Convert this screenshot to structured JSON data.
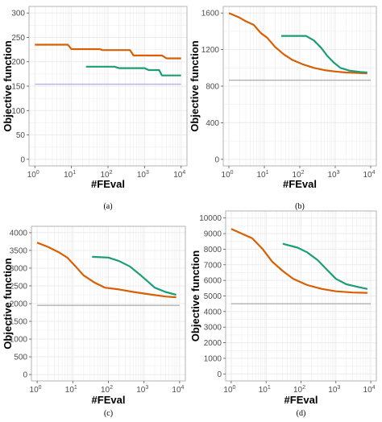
{
  "colors": {
    "series_a": "#D95F02",
    "series_b": "#1B9E77",
    "reference": "#B0B0B0",
    "reference_a": "#B4B1E6",
    "grid": "#EBEBEB",
    "frame": "#B3B3B3"
  },
  "chart_data": [
    {
      "type": "line",
      "panel_label": "(a)",
      "xlabel": "#FEval",
      "ylabel": "Objective function",
      "xscale": "log10",
      "xlim": [
        1,
        10000
      ],
      "ylim": [
        0,
        300
      ],
      "yticks": [
        0,
        50,
        100,
        150,
        200,
        250,
        300
      ],
      "grid": true,
      "legend": "none",
      "series": [
        {
          "values": [
            [
              1,
              235
            ],
            [
              8,
              235
            ],
            [
              10,
              226
            ],
            [
              60,
              226
            ],
            [
              70,
              224
            ],
            [
              400,
              224
            ],
            [
              500,
              213
            ],
            [
              3000,
              213
            ],
            [
              4000,
              207
            ],
            [
              10000,
              207
            ]
          ]
        },
        {
          "values": [
            [
              25,
              190
            ],
            [
              150,
              190
            ],
            [
              200,
              187
            ],
            [
              1000,
              187
            ],
            [
              1300,
              183
            ],
            [
              2500,
              183
            ],
            [
              3000,
              172
            ],
            [
              10000,
              172
            ]
          ]
        },
        {
          "values": [
            [
              1,
              154
            ],
            [
              10000,
              154
            ]
          ]
        }
      ]
    },
    {
      "type": "line",
      "panel_label": "(b)",
      "xlabel": "#FEval",
      "ylabel": "Objective function",
      "xscale": "log10",
      "xlim": [
        1,
        10000
      ],
      "ylim": [
        0,
        1600
      ],
      "yticks": [
        0,
        400,
        800,
        1200,
        1600
      ],
      "grid": true,
      "legend": "none",
      "series": [
        {
          "values": [
            [
              1,
              1600
            ],
            [
              2,
              1550
            ],
            [
              3,
              1510
            ],
            [
              5,
              1470
            ],
            [
              8,
              1380
            ],
            [
              12,
              1330
            ],
            [
              20,
              1230
            ],
            [
              35,
              1150
            ],
            [
              60,
              1090
            ],
            [
              120,
              1040
            ],
            [
              250,
              1000
            ],
            [
              500,
              975
            ],
            [
              1000,
              960
            ],
            [
              2000,
              950
            ],
            [
              4000,
              945
            ],
            [
              8000,
              940
            ]
          ]
        },
        {
          "values": [
            [
              30,
              1350
            ],
            [
              150,
              1350
            ],
            [
              250,
              1300
            ],
            [
              400,
              1220
            ],
            [
              600,
              1130
            ],
            [
              900,
              1060
            ],
            [
              1400,
              1000
            ],
            [
              2500,
              970
            ],
            [
              5000,
              955
            ],
            [
              8000,
              950
            ]
          ]
        },
        {
          "values": [
            [
              1,
              865
            ],
            [
              10000,
              865
            ]
          ]
        }
      ]
    },
    {
      "type": "line",
      "panel_label": "(c)",
      "xlabel": "#FEval",
      "ylabel": "Objective function",
      "xscale": "log10",
      "xlim": [
        1,
        10000
      ],
      "ylim": [
        0,
        4000
      ],
      "yticks": [
        0,
        500,
        1000,
        1500,
        2000,
        2500,
        3000,
        3500,
        4000
      ],
      "grid": true,
      "legend": "none",
      "series": [
        {
          "values": [
            [
              1,
              3720
            ],
            [
              2,
              3600
            ],
            [
              4,
              3450
            ],
            [
              7,
              3300
            ],
            [
              12,
              3050
            ],
            [
              20,
              2800
            ],
            [
              40,
              2600
            ],
            [
              80,
              2450
            ],
            [
              200,
              2400
            ],
            [
              500,
              2330
            ],
            [
              1500,
              2260
            ],
            [
              4000,
              2200
            ],
            [
              8000,
              2180
            ]
          ]
        },
        {
          "values": [
            [
              35,
              3320
            ],
            [
              100,
              3300
            ],
            [
              200,
              3200
            ],
            [
              400,
              3050
            ],
            [
              700,
              2850
            ],
            [
              1200,
              2650
            ],
            [
              2000,
              2450
            ],
            [
              4000,
              2330
            ],
            [
              8000,
              2250
            ]
          ]
        },
        {
          "values": [
            [
              1,
              1950
            ],
            [
              10000,
              1950
            ]
          ]
        }
      ]
    },
    {
      "type": "line",
      "panel_label": "(d)",
      "xlabel": "#FEval",
      "ylabel": "Objective function",
      "xscale": "log10",
      "xlim": [
        1,
        10000
      ],
      "ylim": [
        0,
        10000
      ],
      "yticks": [
        0,
        1000,
        2000,
        3000,
        4000,
        5000,
        6000,
        7000,
        8000,
        9000,
        10000
      ],
      "grid": true,
      "legend": "none",
      "series": [
        {
          "values": [
            [
              1,
              9300
            ],
            [
              2,
              9000
            ],
            [
              4,
              8700
            ],
            [
              8,
              8000
            ],
            [
              15,
              7200
            ],
            [
              30,
              6600
            ],
            [
              60,
              6100
            ],
            [
              150,
              5700
            ],
            [
              400,
              5450
            ],
            [
              1000,
              5300
            ],
            [
              3000,
              5220
            ],
            [
              8000,
              5200
            ]
          ]
        },
        {
          "values": [
            [
              30,
              8350
            ],
            [
              80,
              8100
            ],
            [
              150,
              7800
            ],
            [
              300,
              7300
            ],
            [
              600,
              6600
            ],
            [
              1000,
              6100
            ],
            [
              2000,
              5750
            ],
            [
              5000,
              5550
            ],
            [
              8000,
              5450
            ]
          ]
        },
        {
          "values": [
            [
              1,
              4500
            ],
            [
              10000,
              4500
            ]
          ]
        }
      ]
    }
  ]
}
